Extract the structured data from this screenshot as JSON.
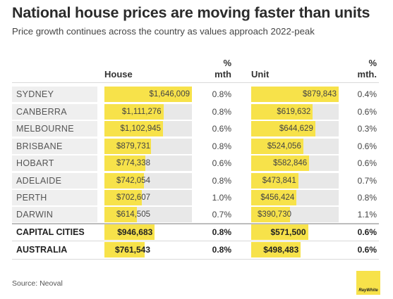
{
  "colors": {
    "bar_fill": "#f7e24a",
    "bar_track": "#e8e8e8",
    "label_bg": "#efefef",
    "logo_bg": "#f7e24a"
  },
  "title": "National house prices are moving faster than units",
  "subtitle": "Price growth continues across the country as values approach 2022-peak",
  "headers": {
    "house": "House",
    "house_pct_1": "%",
    "house_pct_2": "mth",
    "unit": "Unit",
    "unit_pct_1": "%",
    "unit_pct_2": "mth."
  },
  "chart_data": {
    "type": "table",
    "house_scale_max": 1646009,
    "unit_scale_max": 879843,
    "rows": [
      {
        "city": "SYDNEY",
        "house": 1646009,
        "house_label": "$1,646,009",
        "house_pct": "0.8%",
        "unit": 879843,
        "unit_label": "$879,843",
        "unit_pct": "0.4%"
      },
      {
        "city": "CANBERRA",
        "house": 1111276,
        "house_label": "$1,111,276",
        "house_pct": "0.8%",
        "unit": 619632,
        "unit_label": "$619,632",
        "unit_pct": "0.6%"
      },
      {
        "city": "MELBOURNE",
        "house": 1102945,
        "house_label": "$1,102,945",
        "house_pct": "0.6%",
        "unit": 644629,
        "unit_label": "$644,629",
        "unit_pct": "0.3%"
      },
      {
        "city": "BRISBANE",
        "house": 879731,
        "house_label": "$879,731",
        "house_pct": "0.8%",
        "unit": 524056,
        "unit_label": "$524,056",
        "unit_pct": "0.6%"
      },
      {
        "city": "HOBART",
        "house": 774338,
        "house_label": "$774,338",
        "house_pct": "0.6%",
        "unit": 582846,
        "unit_label": "$582,846",
        "unit_pct": "0.6%"
      },
      {
        "city": "ADELAIDE",
        "house": 742054,
        "house_label": "$742,054",
        "house_pct": "0.8%",
        "unit": 473841,
        "unit_label": "$473,841",
        "unit_pct": "0.7%"
      },
      {
        "city": "PERTH",
        "house": 702607,
        "house_label": "$702,607",
        "house_pct": "1.0%",
        "unit": 456424,
        "unit_label": "$456,424",
        "unit_pct": "0.8%"
      },
      {
        "city": "DARWIN",
        "house": 614505,
        "house_label": "$614,505",
        "house_pct": "0.7%",
        "unit": 390730,
        "unit_label": "$390,730",
        "unit_pct": "1.1%"
      },
      {
        "city": "CAPITAL CITIES",
        "house": 946683,
        "house_label": "$946,683",
        "house_pct": "0.8%",
        "unit": 571500,
        "unit_label": "$571,500",
        "unit_pct": "0.6%",
        "emphasis": true
      },
      {
        "city": "AUSTRALIA",
        "house": 761543,
        "house_label": "$761,543",
        "house_pct": "0.8%",
        "unit": 498483,
        "unit_label": "$498,483",
        "unit_pct": "0.6%",
        "emphasis": true
      }
    ]
  },
  "source": "Source: Neoval",
  "logo": {
    "text": "RayWhite",
    "icon": "raywhite-logo"
  }
}
